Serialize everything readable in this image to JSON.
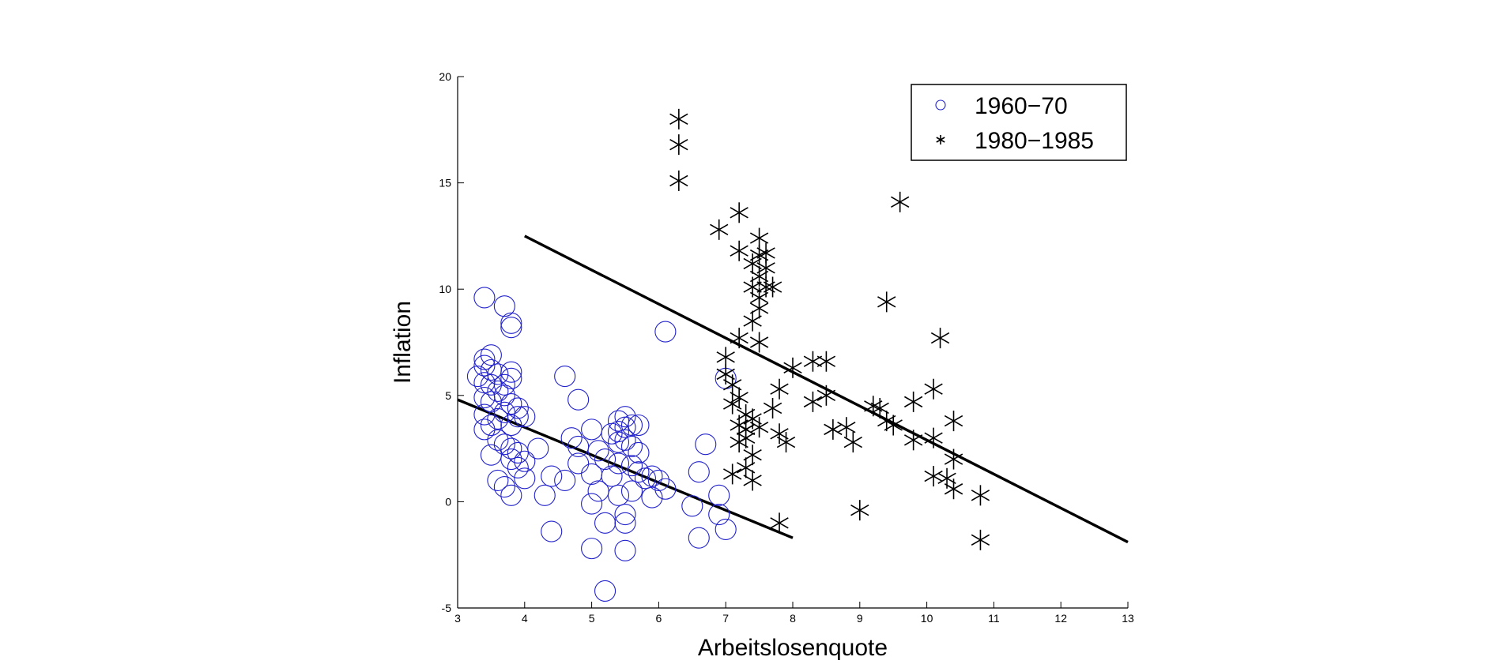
{
  "chart_data": {
    "type": "scatter",
    "title": "",
    "xlabel": "Arbeitslosenquote",
    "ylabel": "Inflation",
    "xlim": [
      3,
      13
    ],
    "ylim": [
      -5,
      20
    ],
    "xticks": [
      3,
      4,
      5,
      6,
      7,
      8,
      9,
      10,
      11,
      12,
      13
    ],
    "yticks": [
      -5,
      0,
      5,
      10,
      15,
      20
    ],
    "grid": false,
    "legend_position": "top-right",
    "series": [
      {
        "name": "1960−70",
        "marker": "circle",
        "color": "#2222cc",
        "points": [
          [
            3.4,
            9.6
          ],
          [
            3.7,
            9.2
          ],
          [
            3.8,
            8.4
          ],
          [
            3.8,
            8.2
          ],
          [
            3.4,
            6.7
          ],
          [
            3.5,
            6.9
          ],
          [
            3.4,
            6.4
          ],
          [
            3.5,
            6.2
          ],
          [
            3.3,
            5.9
          ],
          [
            3.6,
            6.0
          ],
          [
            3.4,
            5.6
          ],
          [
            3.5,
            5.5
          ],
          [
            3.7,
            5.5
          ],
          [
            3.8,
            6.1
          ],
          [
            3.8,
            5.8
          ],
          [
            3.6,
            5.2
          ],
          [
            3.7,
            5.0
          ],
          [
            3.4,
            4.9
          ],
          [
            3.5,
            4.7
          ],
          [
            3.8,
            4.6
          ],
          [
            3.9,
            4.4
          ],
          [
            3.7,
            4.2
          ],
          [
            3.4,
            4.1
          ],
          [
            3.6,
            3.9
          ],
          [
            3.5,
            3.6
          ],
          [
            3.4,
            3.4
          ],
          [
            3.9,
            4.0
          ],
          [
            4.0,
            4.0
          ],
          [
            3.8,
            3.6
          ],
          [
            3.6,
            2.9
          ],
          [
            3.7,
            2.7
          ],
          [
            3.8,
            2.5
          ],
          [
            3.9,
            2.3
          ],
          [
            3.8,
            2.0
          ],
          [
            3.5,
            2.2
          ],
          [
            4.0,
            1.9
          ],
          [
            3.9,
            1.6
          ],
          [
            3.6,
            1.0
          ],
          [
            3.7,
            0.7
          ],
          [
            3.8,
            0.3
          ],
          [
            4.0,
            1.1
          ],
          [
            4.2,
            2.5
          ],
          [
            4.3,
            0.3
          ],
          [
            4.4,
            1.2
          ],
          [
            4.4,
            -1.4
          ],
          [
            4.6,
            1.0
          ],
          [
            4.6,
            5.9
          ],
          [
            4.8,
            4.8
          ],
          [
            4.7,
            3.0
          ],
          [
            4.8,
            2.6
          ],
          [
            4.8,
            1.8
          ],
          [
            5.0,
            3.4
          ],
          [
            5.0,
            1.3
          ],
          [
            5.0,
            -0.1
          ],
          [
            5.0,
            -2.2
          ],
          [
            5.1,
            2.4
          ],
          [
            5.1,
            0.5
          ],
          [
            5.2,
            2.0
          ],
          [
            5.2,
            -1.0
          ],
          [
            5.2,
            -4.2
          ],
          [
            5.3,
            1.2
          ],
          [
            5.3,
            3.2
          ],
          [
            5.4,
            3.8
          ],
          [
            5.4,
            3.3
          ],
          [
            5.4,
            2.8
          ],
          [
            5.4,
            1.8
          ],
          [
            5.4,
            0.3
          ],
          [
            5.5,
            4.0
          ],
          [
            5.5,
            3.5
          ],
          [
            5.5,
            2.9
          ],
          [
            5.5,
            -0.6
          ],
          [
            5.5,
            -1.0
          ],
          [
            5.5,
            -2.3
          ],
          [
            5.6,
            3.6
          ],
          [
            5.6,
            2.6
          ],
          [
            5.6,
            1.7
          ],
          [
            5.6,
            0.5
          ],
          [
            5.7,
            3.6
          ],
          [
            5.7,
            2.3
          ],
          [
            5.7,
            1.4
          ],
          [
            5.8,
            1.1
          ],
          [
            5.9,
            0.2
          ],
          [
            5.9,
            1.2
          ],
          [
            6.0,
            1.0
          ],
          [
            6.1,
            0.6
          ],
          [
            6.1,
            8.0
          ],
          [
            6.5,
            -0.2
          ],
          [
            6.6,
            1.4
          ],
          [
            6.6,
            -1.7
          ],
          [
            6.7,
            2.7
          ],
          [
            6.9,
            0.3
          ],
          [
            6.9,
            -0.6
          ],
          [
            7.0,
            -1.3
          ],
          [
            7.0,
            5.8
          ]
        ]
      },
      {
        "name": "1980−1985",
        "marker": "asterisk",
        "color": "#000000",
        "points": [
          [
            6.3,
            18.0
          ],
          [
            6.3,
            16.8
          ],
          [
            6.3,
            15.1
          ],
          [
            6.9,
            12.8
          ],
          [
            7.2,
            13.6
          ],
          [
            7.2,
            11.8
          ],
          [
            7.4,
            11.2
          ],
          [
            7.5,
            12.4
          ],
          [
            7.5,
            11.6
          ],
          [
            7.6,
            11.7
          ],
          [
            7.6,
            11.0
          ],
          [
            7.5,
            10.6
          ],
          [
            7.4,
            10.1
          ],
          [
            7.6,
            10.1
          ],
          [
            7.7,
            10.1
          ],
          [
            7.5,
            9.6
          ],
          [
            7.5,
            9.1
          ],
          [
            7.4,
            8.5
          ],
          [
            7.2,
            7.7
          ],
          [
            7.5,
            7.5
          ],
          [
            7.0,
            6.8
          ],
          [
            7.0,
            6.0
          ],
          [
            7.1,
            5.5
          ],
          [
            7.2,
            4.9
          ],
          [
            7.1,
            4.6
          ],
          [
            7.3,
            4.1
          ],
          [
            7.4,
            3.9
          ],
          [
            7.2,
            3.6
          ],
          [
            7.3,
            3.4
          ],
          [
            7.5,
            3.5
          ],
          [
            7.3,
            3.0
          ],
          [
            7.2,
            2.8
          ],
          [
            7.4,
            2.2
          ],
          [
            7.3,
            1.6
          ],
          [
            7.1,
            1.3
          ],
          [
            7.4,
            1.0
          ],
          [
            7.7,
            4.4
          ],
          [
            7.8,
            5.3
          ],
          [
            7.8,
            3.2
          ],
          [
            7.9,
            2.8
          ],
          [
            7.8,
            -1.0
          ],
          [
            8.0,
            6.3
          ],
          [
            8.3,
            6.6
          ],
          [
            8.5,
            6.6
          ],
          [
            8.3,
            4.7
          ],
          [
            8.5,
            5.0
          ],
          [
            8.6,
            3.4
          ],
          [
            8.8,
            3.5
          ],
          [
            8.9,
            2.8
          ],
          [
            9.0,
            -0.4
          ],
          [
            9.2,
            4.5
          ],
          [
            9.3,
            4.4
          ],
          [
            9.4,
            3.8
          ],
          [
            9.5,
            3.6
          ],
          [
            9.4,
            9.4
          ],
          [
            9.6,
            14.1
          ],
          [
            9.8,
            4.7
          ],
          [
            9.8,
            2.9
          ],
          [
            10.1,
            5.3
          ],
          [
            10.1,
            3.0
          ],
          [
            10.1,
            1.2
          ],
          [
            10.2,
            7.7
          ],
          [
            10.3,
            1.1
          ],
          [
            10.4,
            3.8
          ],
          [
            10.4,
            2.0
          ],
          [
            10.4,
            0.6
          ],
          [
            10.8,
            0.3
          ],
          [
            10.8,
            -1.8
          ]
        ]
      }
    ],
    "fit_lines": [
      {
        "x": [
          3,
          8
        ],
        "y": [
          4.8,
          -1.7
        ]
      },
      {
        "x": [
          4,
          13
        ],
        "y": [
          12.5,
          -1.9
        ]
      }
    ]
  }
}
